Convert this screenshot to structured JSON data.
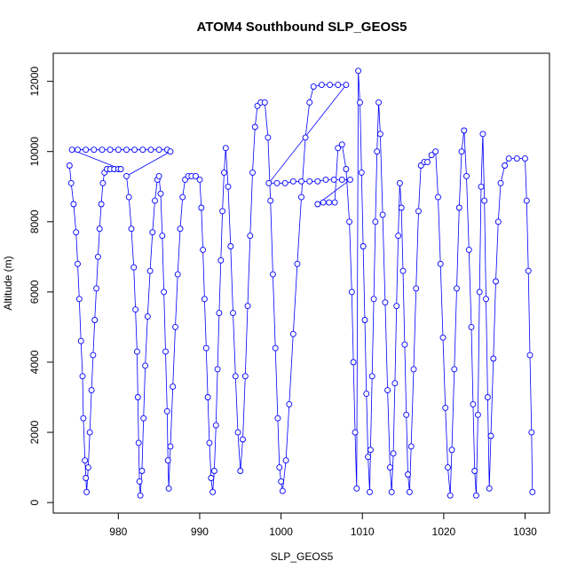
{
  "chart_data": {
    "type": "line",
    "title": "ATOM4 Southbound SLP_GEOS5",
    "xlabel": "SLP_GEOS5",
    "ylabel": "Altitude (m)",
    "xlim": [
      972,
      1033
    ],
    "ylim": [
      -300,
      12800
    ],
    "xticks": [
      980,
      990,
      1000,
      1010,
      1020,
      1030
    ],
    "yticks": [
      0,
      2000,
      4000,
      6000,
      8000,
      10000,
      12000
    ],
    "grid": false,
    "marker": "open-circle",
    "color": "#0000ff",
    "series": [
      {
        "points": [
          [
            974.0,
            9600
          ],
          [
            974.2,
            9100
          ],
          [
            974.5,
            8500
          ],
          [
            974.8,
            7700
          ],
          [
            975.0,
            6800
          ],
          [
            975.2,
            5800
          ],
          [
            975.4,
            4600
          ],
          [
            975.6,
            3600
          ],
          [
            975.7,
            2400
          ],
          [
            975.9,
            1200
          ],
          [
            976.0,
            700
          ],
          [
            976.1,
            300
          ],
          [
            976.3,
            1000
          ],
          [
            976.5,
            2000
          ],
          [
            976.7,
            3200
          ],
          [
            976.9,
            4200
          ],
          [
            977.1,
            5200
          ],
          [
            977.3,
            6100
          ],
          [
            977.5,
            7000
          ],
          [
            977.7,
            7800
          ],
          [
            977.9,
            8500
          ],
          [
            978.1,
            9100
          ],
          [
            978.3,
            9400
          ],
          [
            978.6,
            9500
          ],
          [
            979.0,
            9500
          ],
          [
            979.5,
            9500
          ],
          [
            980.0,
            9500
          ],
          [
            980.3,
            9500
          ],
          [
            974.3,
            10050
          ],
          [
            975.0,
            10050
          ],
          [
            976.0,
            10050
          ],
          [
            977.0,
            10050
          ],
          [
            978.0,
            10050
          ],
          [
            979.0,
            10050
          ],
          [
            980.0,
            10050
          ],
          [
            981.0,
            10050
          ],
          [
            982.0,
            10050
          ],
          [
            983.0,
            10050
          ],
          [
            984.0,
            10050
          ],
          [
            985.0,
            10050
          ],
          [
            986.0,
            10050
          ],
          [
            986.4,
            10000
          ],
          [
            981.0,
            9300
          ],
          [
            981.3,
            8700
          ],
          [
            981.6,
            7800
          ],
          [
            981.9,
            6700
          ],
          [
            982.1,
            5500
          ],
          [
            982.3,
            4300
          ],
          [
            982.4,
            3000
          ],
          [
            982.5,
            1700
          ],
          [
            982.6,
            600
          ],
          [
            982.7,
            200
          ],
          [
            982.9,
            900
          ],
          [
            983.1,
            2400
          ],
          [
            983.3,
            3900
          ],
          [
            983.6,
            5300
          ],
          [
            983.9,
            6600
          ],
          [
            984.2,
            7700
          ],
          [
            984.5,
            8600
          ],
          [
            984.8,
            9200
          ],
          [
            985.0,
            9300
          ],
          [
            985.2,
            8800
          ],
          [
            985.4,
            7600
          ],
          [
            985.6,
            6000
          ],
          [
            985.8,
            4300
          ],
          [
            986.0,
            2600
          ],
          [
            986.1,
            1200
          ],
          [
            986.2,
            400
          ],
          [
            986.4,
            1600
          ],
          [
            986.7,
            3300
          ],
          [
            987.0,
            5000
          ],
          [
            987.3,
            6500
          ],
          [
            987.6,
            7800
          ],
          [
            987.9,
            8700
          ],
          [
            988.2,
            9200
          ],
          [
            988.6,
            9300
          ],
          [
            989.0,
            9300
          ],
          [
            989.5,
            9300
          ],
          [
            990.0,
            9200
          ],
          [
            990.2,
            8400
          ],
          [
            990.4,
            7200
          ],
          [
            990.6,
            5800
          ],
          [
            990.8,
            4400
          ],
          [
            991.0,
            3000
          ],
          [
            991.2,
            1700
          ],
          [
            991.4,
            700
          ],
          [
            991.6,
            300
          ],
          [
            991.8,
            900
          ],
          [
            992.0,
            2200
          ],
          [
            992.2,
            3800
          ],
          [
            992.4,
            5400
          ],
          [
            992.6,
            6900
          ],
          [
            992.8,
            8300
          ],
          [
            993.0,
            9400
          ],
          [
            993.2,
            10100
          ],
          [
            993.5,
            9000
          ],
          [
            993.8,
            7300
          ],
          [
            994.1,
            5400
          ],
          [
            994.4,
            3600
          ],
          [
            994.7,
            2000
          ],
          [
            995.0,
            900
          ],
          [
            995.3,
            1800
          ],
          [
            995.6,
            3600
          ],
          [
            995.9,
            5600
          ],
          [
            996.2,
            7600
          ],
          [
            996.5,
            9400
          ],
          [
            996.8,
            10700
          ],
          [
            997.1,
            11300
          ],
          [
            997.5,
            11400
          ],
          [
            998.0,
            11400
          ],
          [
            998.4,
            10400
          ],
          [
            998.7,
            8600
          ],
          [
            999.0,
            6500
          ],
          [
            999.3,
            4400
          ],
          [
            999.6,
            2400
          ],
          [
            999.8,
            1000
          ],
          [
            1000.0,
            600
          ],
          [
            1000.2,
            330
          ],
          [
            1000.6,
            1200
          ],
          [
            1001.0,
            2800
          ],
          [
            1001.5,
            4800
          ],
          [
            1002.0,
            6800
          ],
          [
            1002.5,
            8700
          ],
          [
            1003.0,
            10400
          ],
          [
            1003.5,
            11400
          ],
          [
            1004.0,
            11850
          ],
          [
            1005.0,
            11900
          ],
          [
            1006.0,
            11900
          ],
          [
            1007.0,
            11900
          ],
          [
            1008.0,
            11900
          ],
          [
            998.5,
            9100
          ],
          [
            999.5,
            9100
          ],
          [
            1000.5,
            9100
          ],
          [
            1001.5,
            9150
          ],
          [
            1002.5,
            9150
          ],
          [
            1003.5,
            9150
          ],
          [
            1004.5,
            9150
          ],
          [
            1005.5,
            9200
          ],
          [
            1006.5,
            9200
          ],
          [
            1007.5,
            9200
          ],
          [
            1008.5,
            9200
          ],
          [
            1004.5,
            8500
          ],
          [
            1005.2,
            8550
          ],
          [
            1005.9,
            8550
          ],
          [
            1006.6,
            8550
          ],
          [
            1007.0,
            10100
          ],
          [
            1007.5,
            10200
          ],
          [
            1008.0,
            9500
          ],
          [
            1008.4,
            8000
          ],
          [
            1008.7,
            6000
          ],
          [
            1008.9,
            4000
          ],
          [
            1009.1,
            2000
          ],
          [
            1009.3,
            400
          ],
          [
            1009.5,
            12300
          ],
          [
            1009.7,
            11400
          ],
          [
            1009.9,
            9400
          ],
          [
            1010.1,
            7300
          ],
          [
            1010.3,
            5200
          ],
          [
            1010.5,
            3100
          ],
          [
            1010.7,
            1300
          ],
          [
            1010.9,
            300
          ],
          [
            1011.0,
            1500
          ],
          [
            1011.2,
            3600
          ],
          [
            1011.4,
            5800
          ],
          [
            1011.6,
            8000
          ],
          [
            1011.8,
            10000
          ],
          [
            1012.0,
            11400
          ],
          [
            1012.2,
            10500
          ],
          [
            1012.5,
            8200
          ],
          [
            1012.8,
            5700
          ],
          [
            1013.1,
            3200
          ],
          [
            1013.4,
            1000
          ],
          [
            1013.6,
            300
          ],
          [
            1013.8,
            1400
          ],
          [
            1014.0,
            3400
          ],
          [
            1014.2,
            5600
          ],
          [
            1014.4,
            7600
          ],
          [
            1014.6,
            9100
          ],
          [
            1014.8,
            8400
          ],
          [
            1015.0,
            6600
          ],
          [
            1015.2,
            4500
          ],
          [
            1015.4,
            2500
          ],
          [
            1015.6,
            800
          ],
          [
            1015.8,
            300
          ],
          [
            1016.0,
            1600
          ],
          [
            1016.3,
            3800
          ],
          [
            1016.6,
            6100
          ],
          [
            1016.9,
            8300
          ],
          [
            1017.2,
            9600
          ],
          [
            1017.6,
            9700
          ],
          [
            1018.0,
            9700
          ],
          [
            1018.5,
            9900
          ],
          [
            1019.0,
            10000
          ],
          [
            1019.3,
            8700
          ],
          [
            1019.6,
            6800
          ],
          [
            1019.9,
            4700
          ],
          [
            1020.2,
            2700
          ],
          [
            1020.5,
            1000
          ],
          [
            1020.8,
            200
          ],
          [
            1021.0,
            1500
          ],
          [
            1021.3,
            3800
          ],
          [
            1021.6,
            6100
          ],
          [
            1021.9,
            8400
          ],
          [
            1022.2,
            10000
          ],
          [
            1022.5,
            10600
          ],
          [
            1022.8,
            9300
          ],
          [
            1023.1,
            7200
          ],
          [
            1023.4,
            5000
          ],
          [
            1023.6,
            2800
          ],
          [
            1023.8,
            900
          ],
          [
            1024.0,
            200
          ],
          [
            1024.2,
            2500
          ],
          [
            1024.4,
            6000
          ],
          [
            1024.6,
            9000
          ],
          [
            1024.8,
            10500
          ],
          [
            1025.0,
            8600
          ],
          [
            1025.2,
            5800
          ],
          [
            1025.4,
            3000
          ],
          [
            1025.6,
            400
          ],
          [
            1025.8,
            1900
          ],
          [
            1026.1,
            4100
          ],
          [
            1026.4,
            6300
          ],
          [
            1026.7,
            8000
          ],
          [
            1027.0,
            9100
          ],
          [
            1027.5,
            9600
          ],
          [
            1028.0,
            9800
          ],
          [
            1029.0,
            9800
          ],
          [
            1030.0,
            9800
          ],
          [
            1030.2,
            8600
          ],
          [
            1030.4,
            6600
          ],
          [
            1030.6,
            4200
          ],
          [
            1030.8,
            2000
          ],
          [
            1030.9,
            300
          ]
        ]
      }
    ]
  }
}
